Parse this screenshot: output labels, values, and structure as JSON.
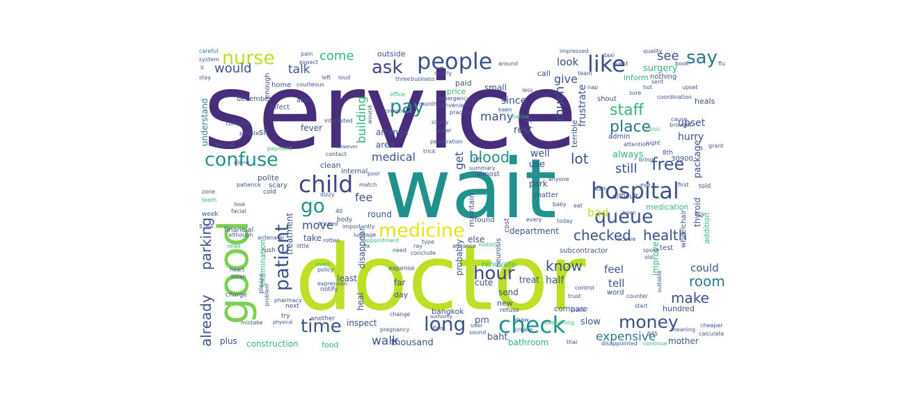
{
  "colors": {
    "deep_purple": "#472D7B",
    "blue_purple": "#3B528B",
    "slate_blue": "#414487",
    "teal": "#21918C",
    "sea_green": "#2A788E",
    "green": "#35B779",
    "lime": "#7AD151",
    "yellow_green": "#BDDF26",
    "yellow": "#E6E419"
  },
  "words": [
    {
      "text": "service"
    },
    {
      "text": "doctor"
    },
    {
      "text": "wait"
    },
    {
      "text": "good"
    },
    {
      "text": "hospital"
    },
    {
      "text": "people"
    },
    {
      "text": "like"
    },
    {
      "text": "child"
    },
    {
      "text": "check"
    },
    {
      "text": "medicine"
    },
    {
      "text": "queue"
    },
    {
      "text": "confuse"
    },
    {
      "text": "nurse"
    },
    {
      "text": "patient"
    },
    {
      "text": "money"
    },
    {
      "text": "long"
    },
    {
      "text": "time"
    },
    {
      "text": "hour"
    },
    {
      "text": "pay"
    },
    {
      "text": "ask"
    },
    {
      "text": "say"
    },
    {
      "text": "free"
    },
    {
      "text": "staff"
    },
    {
      "text": "place"
    },
    {
      "text": "blood"
    },
    {
      "text": "health"
    },
    {
      "text": "checked"
    },
    {
      "text": "room"
    },
    {
      "text": "make"
    },
    {
      "text": "know"
    },
    {
      "text": "parking"
    },
    {
      "text": "already"
    },
    {
      "text": "go"
    },
    {
      "text": "would"
    },
    {
      "text": "talk"
    },
    {
      "text": "come"
    },
    {
      "text": "see"
    },
    {
      "text": "lot"
    },
    {
      "text": "still"
    },
    {
      "text": "expensive"
    },
    {
      "text": "walk"
    },
    {
      "text": "building"
    },
    {
      "text": "many"
    },
    {
      "text": "much"
    },
    {
      "text": "get"
    },
    {
      "text": "medical"
    },
    {
      "text": "fee"
    },
    {
      "text": "move"
    },
    {
      "text": "bad"
    },
    {
      "text": "surgery"
    },
    {
      "text": "give"
    },
    {
      "text": "look"
    },
    {
      "text": "rest"
    },
    {
      "text": "since"
    },
    {
      "text": "upset"
    },
    {
      "text": "frustrate"
    },
    {
      "text": "hurry"
    },
    {
      "text": "package"
    },
    {
      "text": "always"
    },
    {
      "text": "well"
    },
    {
      "text": "use"
    },
    {
      "text": "could"
    },
    {
      "text": "tell"
    },
    {
      "text": "feel"
    },
    {
      "text": "half"
    },
    {
      "text": "thousand"
    },
    {
      "text": "bathroom"
    },
    {
      "text": "construction"
    },
    {
      "text": "inspect"
    },
    {
      "text": "pm"
    },
    {
      "text": "baht"
    },
    {
      "text": "slow"
    },
    {
      "text": "mother"
    },
    {
      "text": "treat"
    },
    {
      "text": "send"
    },
    {
      "text": "cute"
    },
    {
      "text": "far"
    },
    {
      "text": "heal"
    },
    {
      "text": "least"
    },
    {
      "text": "renovate"
    },
    {
      "text": "department"
    },
    {
      "text": "park"
    },
    {
      "text": "else"
    },
    {
      "text": "round"
    },
    {
      "text": "take"
    },
    {
      "text": "treatment"
    },
    {
      "text": "disappear"
    },
    {
      "text": "probably"
    },
    {
      "text": "improve"
    },
    {
      "text": "thyroid"
    },
    {
      "text": "medication"
    },
    {
      "text": "addition"
    },
    {
      "text": "understand"
    },
    {
      "text": "arrange"
    },
    {
      "text": "area"
    },
    {
      "text": "fever"
    },
    {
      "text": "clean"
    },
    {
      "text": "polite"
    },
    {
      "text": "outside"
    },
    {
      "text": "small"
    },
    {
      "text": "paid"
    },
    {
      "text": "price"
    },
    {
      "text": "call"
    },
    {
      "text": "terrible"
    },
    {
      "text": "inform"
    },
    {
      "text": "plus"
    },
    {
      "text": "compare"
    },
    {
      "text": "new"
    },
    {
      "text": "hundred"
    },
    {
      "text": "day"
    },
    {
      "text": "food"
    },
    {
      "text": "examination"
    },
    {
      "text": "bangkok"
    },
    {
      "text": "maintain"
    },
    {
      "text": "sit"
    },
    {
      "text": "result"
    },
    {
      "text": "december"
    },
    {
      "text": "almost"
    },
    {
      "text": "found"
    },
    {
      "text": "subcontractor"
    },
    {
      "text": "test"
    },
    {
      "text": "difficult"
    },
    {
      "text": "matter"
    },
    {
      "text": "scary"
    },
    {
      "text": "financial"
    },
    {
      "text": "lift"
    },
    {
      "text": "internal"
    },
    {
      "text": "word"
    },
    {
      "text": "shout"
    },
    {
      "text": "admin"
    },
    {
      "text": "upset"
    },
    {
      "text": "enough"
    },
    {
      "text": "infect"
    },
    {
      "text": "home"
    },
    {
      "text": "able"
    },
    {
      "text": "cost"
    },
    {
      "text": "nothing"
    },
    {
      "text": "heals"
    },
    {
      "text": "neurosis"
    },
    {
      "text": "wheelchair"
    },
    {
      "text": "30900"
    },
    {
      "text": "8th"
    },
    {
      "text": "told"
    },
    {
      "text": "body"
    },
    {
      "text": "cold"
    },
    {
      "text": "week"
    },
    {
      "text": "charge"
    },
    {
      "text": "next"
    },
    {
      "text": "another"
    },
    {
      "text": "expense"
    },
    {
      "text": "expression"
    },
    {
      "text": "notify"
    },
    {
      "text": "policy"
    },
    {
      "text": "even"
    },
    {
      "text": "pharmacy"
    },
    {
      "text": "heart"
    },
    {
      "text": "listen"
    },
    {
      "text": "relax"
    },
    {
      "text": "rush"
    },
    {
      "text": "lose"
    },
    {
      "text": "facial"
    },
    {
      "text": "teeth"
    },
    {
      "text": "please"
    },
    {
      "text": "try"
    },
    {
      "text": "careful"
    },
    {
      "text": "system"
    },
    {
      "text": "stay"
    },
    {
      "text": "pain"
    },
    {
      "text": "courteous"
    },
    {
      "text": "business"
    },
    {
      "text": "three"
    },
    {
      "text": "nearly"
    },
    {
      "text": "month"
    },
    {
      "text": "emergency"
    },
    {
      "text": "office"
    },
    {
      "text": "foreigner"
    },
    {
      "text": "interested"
    },
    {
      "text": "contact"
    },
    {
      "text": "payment"
    },
    {
      "text": "private"
    },
    {
      "text": "appointment"
    },
    {
      "text": "history"
    },
    {
      "text": "type"
    },
    {
      "text": "poor"
    },
    {
      "text": "cheaper"
    },
    {
      "text": "meaning"
    },
    {
      "text": "disappointed"
    },
    {
      "text": "continue"
    },
    {
      "text": "thai"
    },
    {
      "text": "everything"
    },
    {
      "text": "clock"
    },
    {
      "text": "refuse"
    },
    {
      "text": "user"
    },
    {
      "text": "floor"
    },
    {
      "text": "pregnancy"
    },
    {
      "text": "sound"
    },
    {
      "text": "draw"
    },
    {
      "text": "create"
    },
    {
      "text": "penetration"
    },
    {
      "text": "trick"
    },
    {
      "text": "water"
    },
    {
      "text": "slowly"
    },
    {
      "text": "coordination"
    },
    {
      "text": "hot"
    },
    {
      "text": "sent"
    },
    {
      "text": "clinic"
    },
    {
      "text": "cause"
    },
    {
      "text": "brought"
    },
    {
      "text": "night"
    },
    {
      "text": "attention"
    },
    {
      "text": "trust"
    },
    {
      "text": "baby"
    },
    {
      "text": "eat"
    },
    {
      "text": "noon"
    },
    {
      "text": "today"
    },
    {
      "text": "receive"
    },
    {
      "text": "old"
    },
    {
      "text": "buy"
    },
    {
      "text": "eye"
    },
    {
      "text": "first"
    },
    {
      "text": "taxi"
    },
    {
      "text": "impressed"
    },
    {
      "text": "quality"
    },
    {
      "text": "team"
    },
    {
      "text": "every"
    },
    {
      "text": "anyone"
    },
    {
      "text": "ray"
    },
    {
      "text": "conclude"
    },
    {
      "text": "rotten"
    },
    {
      "text": "little"
    },
    {
      "text": "antenatal"
    },
    {
      "text": "tricked"
    },
    {
      "text": "40"
    },
    {
      "text": "5264"
    },
    {
      "text": "945"
    },
    {
      "text": "suitable"
    },
    {
      "text": "book"
    },
    {
      "text": "flu"
    },
    {
      "text": "left"
    },
    {
      "text": "loud"
    },
    {
      "text": "convenient"
    },
    {
      "text": "practice"
    },
    {
      "text": "around"
    },
    {
      "text": "less"
    },
    {
      "text": "need"
    },
    {
      "text": "advance"
    },
    {
      "text": "summary"
    },
    {
      "text": "grant"
    },
    {
      "text": "spoke"
    },
    {
      "text": "ll"
    },
    {
      "text": "dizzy"
    },
    {
      "text": "importantly"
    },
    {
      "text": "expect"
    },
    {
      "text": "alone"
    },
    {
      "text": "zone"
    },
    {
      "text": "complain"
    },
    {
      "text": "patience"
    },
    {
      "text": "although"
    },
    {
      "text": "problem"
    },
    {
      "text": "mistake"
    },
    {
      "text": "guest"
    },
    {
      "text": "luggage"
    },
    {
      "text": "change"
    },
    {
      "text": "bring"
    },
    {
      "text": "sure"
    },
    {
      "text": "nap"
    },
    {
      "text": "really"
    },
    {
      "text": "match"
    },
    {
      "text": "physical"
    },
    {
      "text": "authority"
    },
    {
      "text": "kaen"
    },
    {
      "text": "relative"
    },
    {
      "text": "wound"
    },
    {
      "text": "however"
    },
    {
      "text": "fix"
    },
    {
      "text": "control"
    },
    {
      "text": "counter"
    },
    {
      "text": "start"
    },
    {
      "text": "calculate"
    },
    {
      "text": "let"
    }
  ]
}
